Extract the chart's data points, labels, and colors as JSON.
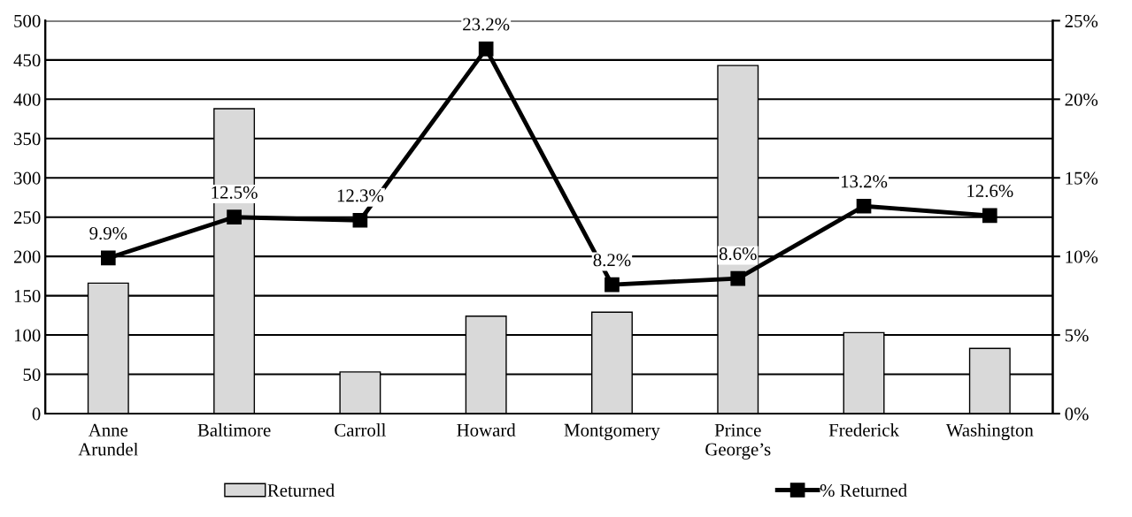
{
  "chart_data": {
    "type": "bar",
    "categories": [
      "Anne\nArundel",
      "Baltimore",
      "Carroll",
      "Howard",
      "Montgomery",
      "Prince\nGeorge’s",
      "Frederick",
      "Washington"
    ],
    "series": [
      {
        "name": "Returned",
        "color": "#d9d9d9",
        "values": [
          166,
          388,
          53,
          124,
          129,
          443,
          103,
          83
        ]
      },
      {
        "name": "% Returned",
        "type": "line",
        "axis": "y2",
        "color": "#000000",
        "marker": "square",
        "values": [
          9.9,
          12.5,
          12.3,
          23.2,
          8.2,
          8.6,
          13.2,
          12.6
        ],
        "value_labels": [
          "9.9%",
          "12.5%",
          "12.3%",
          "23.2%",
          "8.2%",
          "8.6%",
          "13.2%",
          "12.6%"
        ]
      }
    ],
    "ylim": [
      0,
      500
    ],
    "yticks": [
      0,
      50,
      100,
      150,
      200,
      250,
      300,
      350,
      400,
      450,
      500
    ],
    "y2lim": [
      0,
      25
    ],
    "y2ticks": [
      {
        "value": 0,
        "label": "0%"
      },
      {
        "value": 5,
        "label": "5%"
      },
      {
        "value": 10,
        "label": "10%"
      },
      {
        "value": 15,
        "label": "15%"
      },
      {
        "value": 20,
        "label": "20%"
      },
      {
        "value": 25,
        "label": "25%"
      }
    ],
    "grid": "y",
    "legend": "bottom"
  }
}
